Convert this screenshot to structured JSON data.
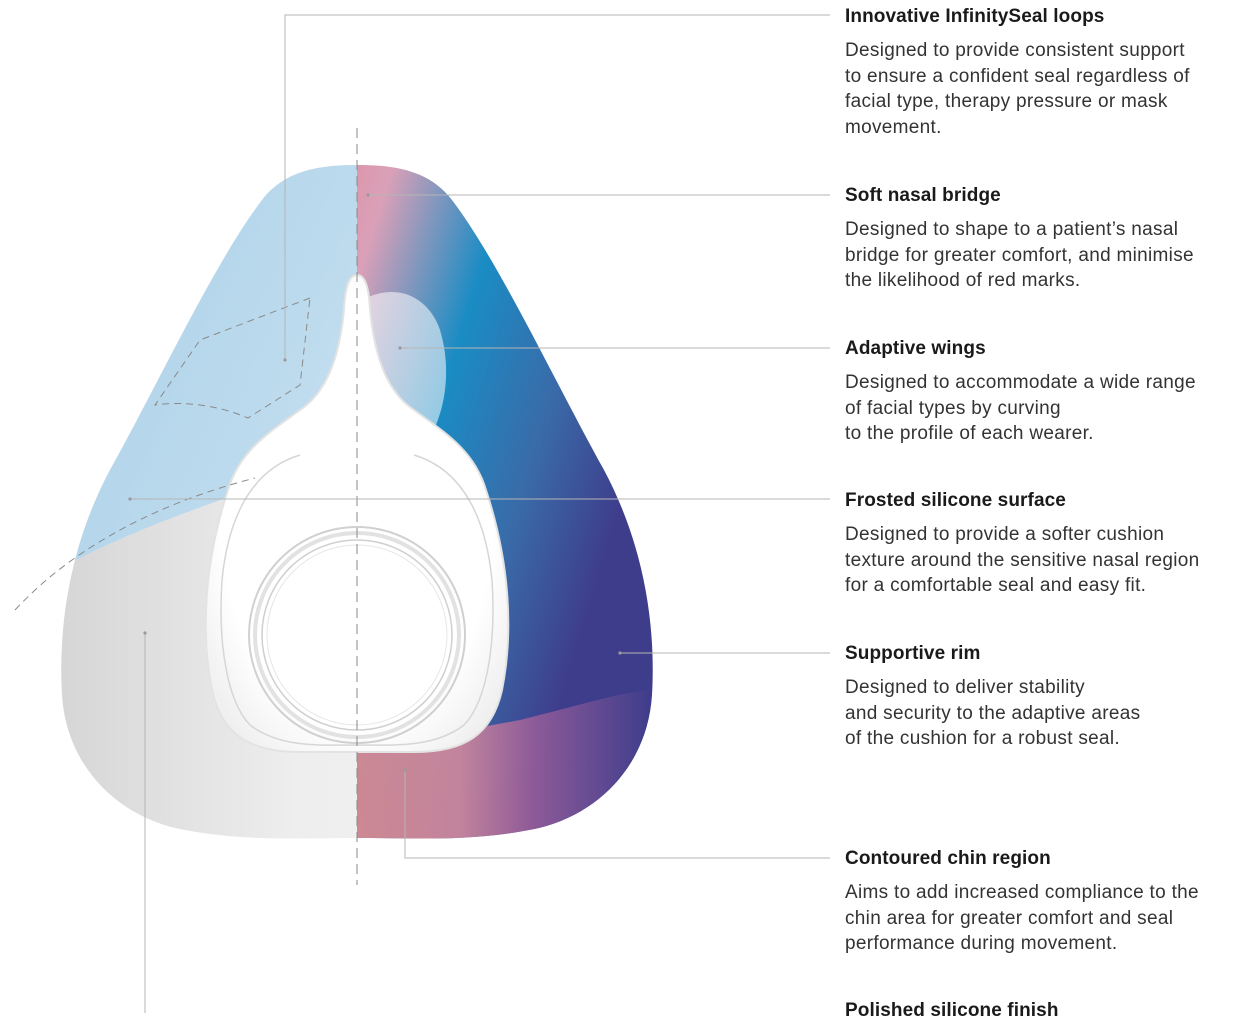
{
  "features": [
    {
      "title": "Innovative InfinitySeal loops",
      "description": "Designed to provide consistent support\nto ensure a confident seal regardless of\nfacial type, therapy pressure or mask\nmovement."
    },
    {
      "title": "Soft nasal bridge",
      "description": "Designed to shape to a patient’s nasal\nbridge for greater comfort, and minimise\nthe likelihood of red marks."
    },
    {
      "title": "Adaptive wings",
      "description": "Designed to accommodate a wide range\nof facial types by curving\nto the profile of each wearer."
    },
    {
      "title": "Frosted silicone surface",
      "description": "Designed to provide a softer cushion\ntexture around the sensitive nasal region\nfor a comfortable seal and easy fit."
    },
    {
      "title": "Supportive rim",
      "description": "Designed to deliver stability\nand security to the adaptive areas\nof the cushion for a robust seal."
    },
    {
      "title": "Contoured chin region",
      "description": "Aims to add increased compliance to the\nchin area for greater comfort and seal\nperformance during movement."
    },
    {
      "title": "Polished silicone finish",
      "description": ""
    }
  ],
  "colors": {
    "leader_line": "#b5b5b5",
    "frosted_blue": "#bcd9ec",
    "polished_grey": "#e4e4e4",
    "gradient_red": "#e77a80",
    "gradient_blue": "#0f74b5",
    "gradient_purple": "#3e3d8c"
  }
}
